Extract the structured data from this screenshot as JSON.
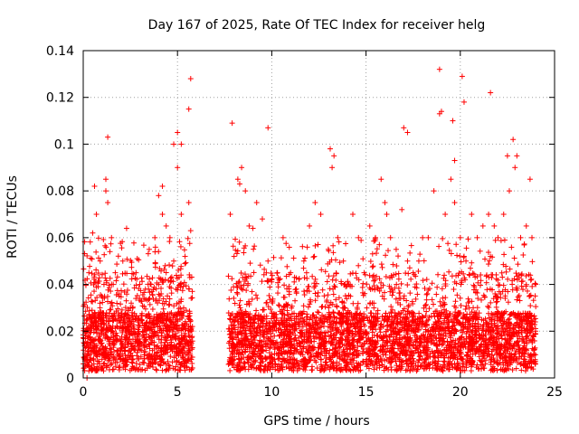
{
  "chart_data": {
    "type": "scatter",
    "title": "Day 167 of 2025, Rate Of TEC Index for receiver helg",
    "xlabel": "GPS time / hours",
    "ylabel": "ROTI / TECUs",
    "xlim": [
      0,
      25
    ],
    "ylim": [
      0,
      0.14
    ],
    "xticks": [
      0,
      5,
      10,
      15,
      20,
      25
    ],
    "xtick_labels": [
      "0",
      "5",
      "10",
      "15",
      "20",
      "25"
    ],
    "yticks": [
      0,
      0.02,
      0.04,
      0.06,
      0.08,
      0.1,
      0.12,
      0.14
    ],
    "ytick_labels": [
      "0",
      "0.02",
      "0.04",
      "0.06",
      "0.08",
      "0.1",
      "0.12",
      "0.14"
    ],
    "grid": true,
    "marker": "plus",
    "color": "#ff0000",
    "data_gap_hours": [
      5.8,
      7.7
    ],
    "series": [
      {
        "x": [
          0.1,
          0.3,
          0.5,
          0.6,
          0.7,
          0.9,
          1.1,
          1.2,
          1.3,
          1.5,
          1.7,
          1.9,
          2.1,
          2.3,
          2.5,
          2.8,
          3.0,
          3.3,
          3.5,
          3.8,
          4.0,
          4.2,
          4.4,
          4.6,
          4.8,
          5.0,
          5.2,
          5.4,
          5.6,
          5.7,
          7.8,
          8.0,
          8.2,
          8.4,
          8.6,
          8.8,
          9.0,
          9.2,
          9.5,
          9.8,
          10.0,
          10.3,
          10.6,
          11.0,
          11.3,
          11.7,
          12.0,
          12.3,
          12.6,
          13.0,
          13.2,
          13.5,
          13.8,
          14.0,
          14.3,
          14.6,
          14.9,
          15.2,
          15.5,
          15.8,
          16.0,
          16.3,
          16.6,
          16.9,
          17.2,
          17.5,
          17.8,
          18.0,
          18.3,
          18.6,
          18.9,
          19.2,
          19.5,
          19.7,
          20.0,
          20.3,
          20.6,
          20.9,
          21.2,
          21.5,
          21.8,
          22.0,
          22.3,
          22.6,
          22.9,
          23.2,
          23.5,
          23.8,
          24.0,
          0.2,
          1.3,
          1.2,
          4.2,
          4.8,
          5.0,
          5.2,
          5.7,
          5.6,
          8.3,
          9.8,
          7.9,
          13.1,
          13.3,
          16.1,
          17.0,
          17.2,
          18.9,
          19.0,
          19.6,
          19.7,
          20.1,
          20.2,
          21.6,
          22.5,
          22.8,
          23.0,
          23.7
        ],
        "y": [
          0.02,
          0.045,
          0.062,
          0.082,
          0.07,
          0.05,
          0.04,
          0.085,
          0.075,
          0.06,
          0.045,
          0.035,
          0.05,
          0.064,
          0.03,
          0.045,
          0.04,
          0.038,
          0.055,
          0.06,
          0.078,
          0.07,
          0.065,
          0.06,
          0.05,
          0.09,
          0.07,
          0.052,
          0.075,
          0.063,
          0.07,
          0.052,
          0.085,
          0.09,
          0.08,
          0.065,
          0.064,
          0.075,
          0.068,
          0.05,
          0.042,
          0.045,
          0.06,
          0.045,
          0.038,
          0.05,
          0.065,
          0.075,
          0.07,
          0.055,
          0.09,
          0.06,
          0.05,
          0.04,
          0.07,
          0.06,
          0.045,
          0.065,
          0.06,
          0.085,
          0.075,
          0.06,
          0.055,
          0.072,
          0.05,
          0.045,
          0.05,
          0.06,
          0.06,
          0.08,
          0.113,
          0.07,
          0.085,
          0.075,
          0.06,
          0.05,
          0.07,
          0.06,
          0.065,
          0.07,
          0.065,
          0.06,
          0.07,
          0.08,
          0.09,
          0.06,
          0.065,
          0.06,
          0.04,
          0.0,
          0.103,
          0.08,
          0.082,
          0.1,
          0.105,
          0.1,
          0.128,
          0.115,
          0.083,
          0.107,
          0.109,
          0.098,
          0.095,
          0.07,
          0.107,
          0.105,
          0.132,
          0.114,
          0.11,
          0.093,
          0.129,
          0.118,
          0.122,
          0.095,
          0.102,
          0.095,
          0.085
        ]
      }
    ]
  }
}
